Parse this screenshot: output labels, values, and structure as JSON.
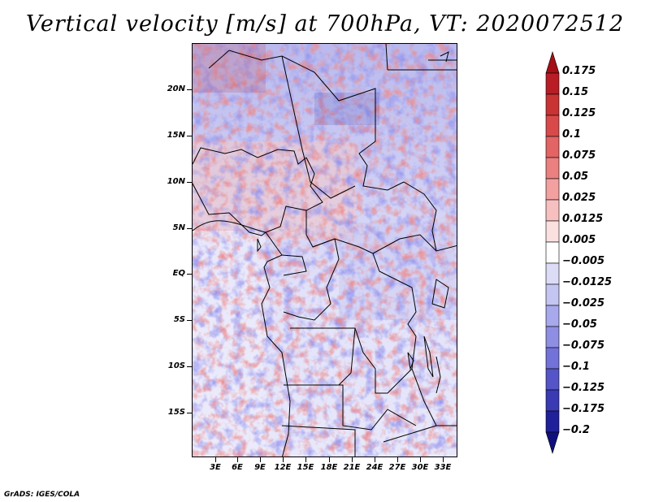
{
  "title": "Vertical velocity [m/s] at 700hPa, VT: 2020072512",
  "credit": "GrADS: IGES/COLA",
  "lat_labels": [
    "20N",
    "15N",
    "10N",
    "5N",
    "EQ",
    "5S",
    "10S",
    "15S"
  ],
  "lon_labels": [
    "3E",
    "6E",
    "9E",
    "12E",
    "15E",
    "18E",
    "21E",
    "24E",
    "27E",
    "30E",
    "33E"
  ],
  "colorbar": {
    "levels": [
      "0.175",
      "0.15",
      "0.125",
      "0.1",
      "0.075",
      "0.05",
      "0.025",
      "0.0125",
      "0.005",
      "−0.005",
      "−0.0125",
      "−0.025",
      "−0.05",
      "−0.075",
      "−0.1",
      "−0.125",
      "−0.175",
      "−0.2"
    ],
    "colors": [
      "#a50f15",
      "#b81d25",
      "#c93333",
      "#d84a4a",
      "#e26464",
      "#ea8080",
      "#f2a0a0",
      "#f7c0c0",
      "#fbe0e0",
      "#ffffff",
      "#dcdcf7",
      "#c5c5f2",
      "#a8a8ec",
      "#8e8ee3",
      "#7272d8",
      "#5555c8",
      "#3a3ab3",
      "#20209a",
      "#10107d"
    ]
  },
  "colors": {
    "positive": "#d63a3a",
    "negative": "#4a4ad0",
    "border": "#000000"
  }
}
